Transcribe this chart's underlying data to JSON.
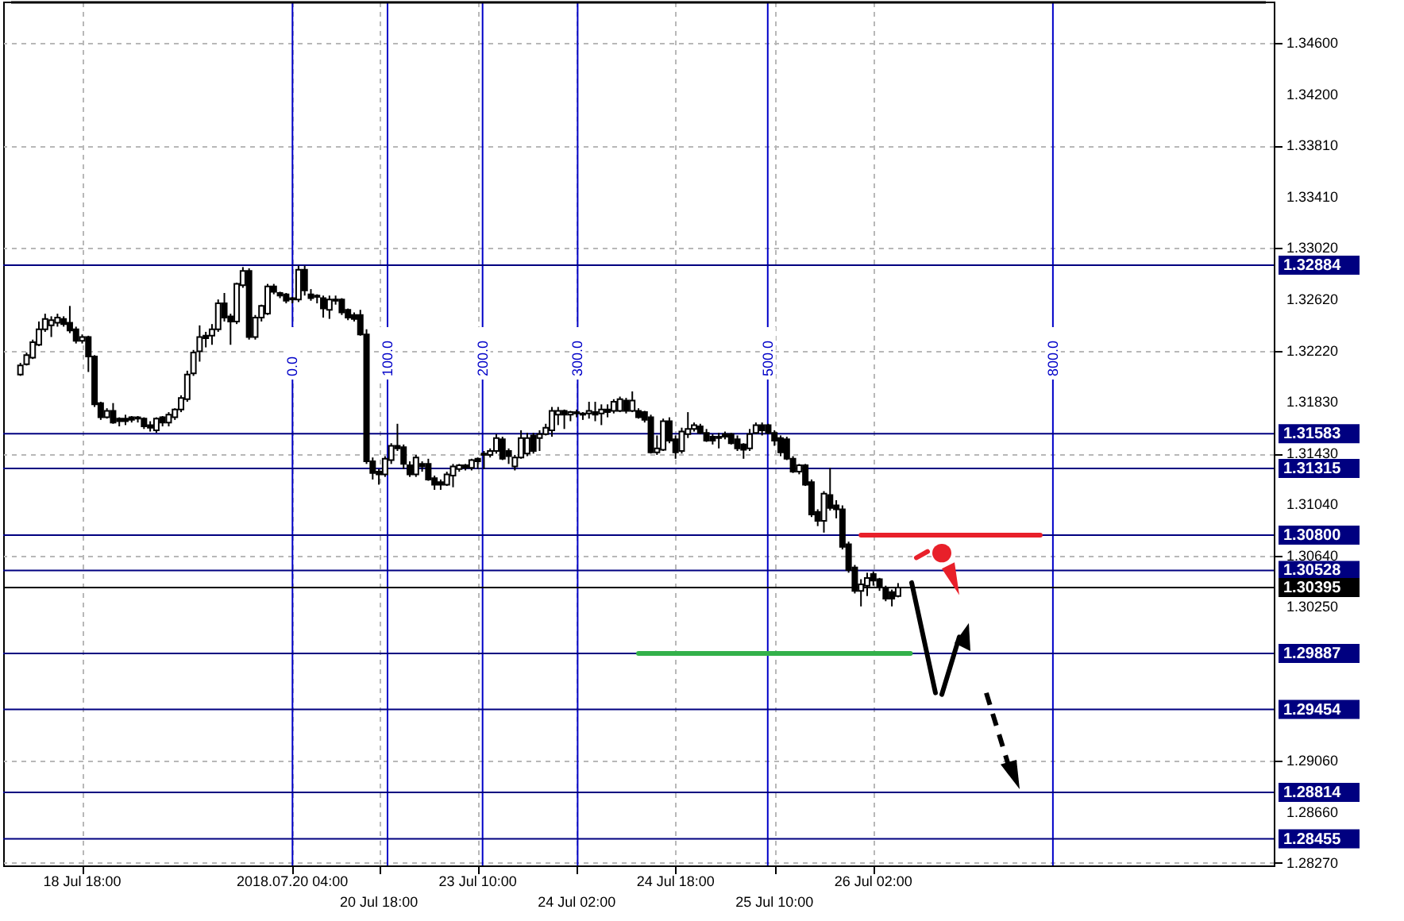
{
  "chart_data": {
    "type": "candlestick",
    "categories": [
      null,
      null,
      null,
      null,
      null,
      null,
      null,
      null,
      null,
      null,
      null,
      "18 Jul 18:00",
      null,
      null,
      null,
      null,
      null,
      null,
      null,
      null,
      null,
      null,
      null,
      null,
      null,
      null,
      null,
      null,
      null,
      null,
      null,
      null,
      null,
      null,
      null,
      null,
      null,
      null,
      null,
      null,
      null,
      null,
      null,
      null,
      null,
      "2018.07.20 04:00",
      null,
      null,
      null,
      null,
      null,
      null,
      null,
      null,
      null,
      null,
      null,
      null,
      null,
      "20 Jul 18:00",
      null,
      null,
      null,
      null,
      null,
      null,
      null,
      null,
      null,
      null,
      null,
      null,
      null,
      null,
      null,
      "23 Jul 10:00",
      null,
      null,
      null,
      null,
      null,
      null,
      null,
      null,
      null,
      null,
      null,
      null,
      null,
      null,
      null,
      "24 Jul 02:00",
      null,
      null,
      null,
      null,
      null,
      null,
      null,
      null,
      null,
      null,
      null,
      null,
      null,
      null,
      null,
      "24 Jul 18:00",
      null,
      null,
      null,
      null,
      null,
      null,
      null,
      null,
      null,
      null,
      null,
      null,
      null,
      null,
      null,
      "25 Jul 10:00",
      null,
      null,
      null,
      null,
      null,
      null,
      null,
      null,
      null,
      null,
      null,
      null,
      null,
      null,
      null,
      "26 Jul 02:00",
      null,
      null,
      null,
      null,
      null,
      null,
      null,
      null,
      null,
      null,
      null,
      null,
      null,
      null,
      null,
      null,
      null,
      null,
      null,
      null,
      null,
      null,
      null,
      null,
      null,
      null,
      null,
      null,
      null,
      null,
      null,
      null,
      null,
      null,
      null,
      null,
      null,
      null,
      null,
      null,
      null,
      null,
      null,
      null,
      null,
      null,
      null,
      null,
      null,
      null,
      null,
      null,
      null,
      null,
      null,
      null,
      null,
      null,
      null,
      null,
      null,
      null,
      null
    ],
    "ohlc": [
      null,
      [
        1.3204,
        1.3213,
        1.3203,
        1.3211
      ],
      [
        1.3212,
        1.3221,
        1.3211,
        1.3219
      ],
      [
        1.3217,
        1.3231,
        1.3216,
        1.3229
      ],
      [
        1.3227,
        1.3245,
        1.3226,
        1.3239
      ],
      [
        1.3239,
        1.3251,
        1.3237,
        1.3247
      ],
      [
        1.3242,
        1.3249,
        1.3233,
        1.3246
      ],
      [
        1.3244,
        1.3251,
        1.3241,
        1.3248
      ],
      [
        1.3247,
        1.3249,
        1.3241,
        1.3243
      ],
      [
        1.3244,
        1.3257,
        1.3236,
        1.3238
      ],
      [
        1.3239,
        1.3241,
        1.3228,
        1.323
      ],
      [
        1.323,
        1.3235,
        1.3228,
        1.3233
      ],
      [
        1.3233,
        1.3234,
        1.3206,
        1.3218
      ],
      [
        1.3218,
        1.3219,
        1.3179,
        1.3181
      ],
      [
        1.3182,
        1.3183,
        1.3169,
        1.3171
      ],
      [
        1.3171,
        1.3178,
        1.317,
        1.3176
      ],
      [
        1.3176,
        1.3182,
        1.3166,
        1.3167
      ],
      [
        1.317,
        1.3171,
        1.3164,
        1.3168
      ],
      [
        1.317,
        1.3173,
        1.3165,
        1.3168
      ],
      [
        1.3171,
        1.3172,
        1.3167,
        1.3169
      ],
      [
        1.3171,
        1.3172,
        1.3167,
        1.317
      ],
      [
        1.317,
        1.3171,
        1.3162,
        1.3164
      ],
      [
        1.3165,
        1.3168,
        1.316,
        1.3163
      ],
      [
        1.3161,
        1.3171,
        1.3159,
        1.317
      ],
      [
        1.3171,
        1.3172,
        1.3164,
        1.3167
      ],
      [
        1.3167,
        1.3175,
        1.3164,
        1.3173
      ],
      [
        1.3171,
        1.3178,
        1.3169,
        1.3177
      ],
      [
        1.3177,
        1.3188,
        1.3175,
        1.3186
      ],
      [
        1.3185,
        1.3207,
        1.3183,
        1.3204
      ],
      [
        1.3205,
        1.3223,
        1.3203,
        1.3221
      ],
      [
        1.3222,
        1.3242,
        1.3214,
        1.3233
      ],
      [
        1.3234,
        1.3237,
        1.3225,
        1.3232
      ],
      [
        1.3234,
        1.3243,
        1.3227,
        1.3239
      ],
      [
        1.3239,
        1.3262,
        1.3237,
        1.3259
      ],
      [
        1.3259,
        1.3267,
        1.3245,
        1.3248
      ],
      [
        1.3249,
        1.3251,
        1.3227,
        1.3245
      ],
      [
        1.3245,
        1.3275,
        1.3243,
        1.3274
      ],
      [
        1.3273,
        1.3287,
        1.3271,
        1.3284
      ],
      [
        1.3284,
        1.3286,
        1.3231,
        1.3233
      ],
      [
        1.3233,
        1.325,
        1.3231,
        1.3248
      ],
      [
        1.3248,
        1.3258,
        1.3245,
        1.3257
      ],
      [
        1.3251,
        1.3274,
        1.325,
        1.3272
      ],
      [
        1.3272,
        1.3274,
        1.3266,
        1.3268
      ],
      [
        1.3267,
        1.3268,
        1.3263,
        1.3265
      ],
      [
        1.3266,
        1.3267,
        1.3259,
        1.3261
      ],
      [
        1.3263,
        1.3264,
        1.3259,
        1.3262
      ],
      [
        1.3262,
        1.3288,
        1.326,
        1.3285
      ],
      [
        1.3285,
        1.3288,
        1.3265,
        1.3269
      ],
      [
        1.3266,
        1.327,
        1.3261,
        1.3263
      ],
      [
        1.3265,
        1.3266,
        1.3259,
        1.3264
      ],
      [
        1.3263,
        1.3265,
        1.3248,
        1.3255
      ],
      [
        1.3254,
        1.3265,
        1.3247,
        1.3262
      ],
      [
        1.3262,
        1.3265,
        1.3258,
        1.3261
      ],
      [
        1.3262,
        1.3263,
        1.325,
        1.3252
      ],
      [
        1.3254,
        1.3255,
        1.3246,
        1.3248
      ],
      [
        1.325,
        1.3252,
        1.3245,
        1.3247
      ],
      [
        1.325,
        1.3254,
        1.3234,
        1.3235
      ],
      [
        1.3235,
        1.3239,
        1.3135,
        1.3137
      ],
      [
        1.3137,
        1.314,
        1.3123,
        1.3128
      ],
      [
        1.3129,
        1.3131,
        1.3119,
        1.3127
      ],
      [
        1.3127,
        1.3141,
        1.3125,
        1.3139
      ],
      [
        1.3138,
        1.3151,
        1.3135,
        1.3149
      ],
      [
        1.3149,
        1.3166,
        1.3145,
        1.3147
      ],
      [
        1.3148,
        1.315,
        1.3131,
        1.3135
      ],
      [
        1.3134,
        1.3137,
        1.3125,
        1.3127
      ],
      [
        1.3127,
        1.3142,
        1.3125,
        1.314
      ],
      [
        1.3135,
        1.3137,
        1.3129,
        1.3133
      ],
      [
        1.3135,
        1.3139,
        1.3122,
        1.3123
      ],
      [
        1.3124,
        1.3126,
        1.3115,
        1.3119
      ],
      [
        1.3121,
        1.3123,
        1.3115,
        1.3119
      ],
      [
        1.3119,
        1.3129,
        1.3118,
        1.3127
      ],
      [
        1.3126,
        1.3135,
        1.3117,
        1.3133
      ],
      [
        1.3131,
        1.3135,
        1.3129,
        1.3134
      ],
      [
        1.3134,
        1.3135,
        1.313,
        1.3132
      ],
      [
        1.3132,
        1.3139,
        1.313,
        1.3138
      ],
      [
        1.3139,
        1.314,
        1.3131,
        1.3137
      ],
      [
        1.3143,
        1.3145,
        1.3131,
        1.3142
      ],
      [
        1.3142,
        1.3147,
        1.314,
        1.3145
      ],
      [
        1.3145,
        1.3158,
        1.3143,
        1.3155
      ],
      [
        1.3154,
        1.3156,
        1.3138,
        1.3139
      ],
      [
        1.3145,
        1.3147,
        1.3135,
        1.3141
      ],
      [
        1.3133,
        1.3142,
        1.313,
        1.314
      ],
      [
        1.314,
        1.3161,
        1.3139,
        1.3155
      ],
      [
        1.3143,
        1.3159,
        1.3141,
        1.3155
      ],
      [
        1.3157,
        1.3159,
        1.3143,
        1.3145
      ],
      [
        1.3155,
        1.3161,
        1.3145,
        1.3158
      ],
      [
        1.3158,
        1.3166,
        1.3157,
        1.3163
      ],
      [
        1.3161,
        1.3179,
        1.3156,
        1.3176
      ],
      [
        1.3173,
        1.3179,
        1.3165,
        1.3176
      ],
      [
        1.3176,
        1.3177,
        1.3162,
        1.3173
      ],
      [
        1.3173,
        1.3176,
        1.3168,
        1.3175
      ],
      [
        1.3175,
        1.3177,
        1.3171,
        1.3174
      ],
      [
        1.3174,
        1.3175,
        1.3169,
        1.3173
      ],
      [
        1.3174,
        1.3183,
        1.317,
        1.3176
      ],
      [
        1.3175,
        1.3183,
        1.3168,
        1.3173
      ],
      [
        1.3174,
        1.3181,
        1.3165,
        1.3177
      ],
      [
        1.3177,
        1.3181,
        1.3171,
        1.3175
      ],
      [
        1.3176,
        1.3185,
        1.3174,
        1.3183
      ],
      [
        1.3176,
        1.3187,
        1.3175,
        1.3185
      ],
      [
        1.3184,
        1.3186,
        1.3174,
        1.3176
      ],
      [
        1.3176,
        1.3191,
        1.3175,
        1.3184
      ],
      [
        1.3176,
        1.3178,
        1.317,
        1.3171
      ],
      [
        1.3175,
        1.3176,
        1.3167,
        1.3169
      ],
      [
        1.3171,
        1.3173,
        1.3143,
        1.3144
      ],
      [
        1.3144,
        1.3157,
        1.3142,
        1.3147
      ],
      [
        1.3146,
        1.317,
        1.3145,
        1.3168
      ],
      [
        1.3168,
        1.3171,
        1.3151,
        1.3153
      ],
      [
        1.3154,
        1.3157,
        1.3139,
        1.3144
      ],
      [
        1.3145,
        1.3163,
        1.3143,
        1.316
      ],
      [
        1.3158,
        1.3175,
        1.3155,
        1.3162
      ],
      [
        1.3162,
        1.3167,
        1.316,
        1.3165
      ],
      [
        1.3164,
        1.3166,
        1.3158,
        1.3159
      ],
      [
        1.3159,
        1.3162,
        1.3152,
        1.3153
      ],
      [
        1.3156,
        1.3158,
        1.315,
        1.3153
      ],
      [
        1.3156,
        1.3159,
        1.3147,
        1.3155
      ],
      [
        1.3158,
        1.316,
        1.3154,
        1.3156
      ],
      [
        1.3158,
        1.3159,
        1.315,
        1.3151
      ],
      [
        1.3154,
        1.3157,
        1.3145,
        1.3147
      ],
      [
        1.315,
        1.3151,
        1.3139,
        1.3146
      ],
      [
        1.3147,
        1.3162,
        1.3145,
        1.3158
      ],
      [
        1.3159,
        1.3167,
        1.3158,
        1.3165
      ],
      [
        1.3165,
        1.3167,
        1.3157,
        1.3161
      ],
      [
        1.3165,
        1.3166,
        1.3158,
        1.3159
      ],
      [
        1.3159,
        1.3161,
        1.3149,
        1.3153
      ],
      [
        1.3155,
        1.3157,
        1.3141,
        1.3144
      ],
      [
        1.3154,
        1.3156,
        1.3138,
        1.3139
      ],
      [
        1.3139,
        1.3141,
        1.3128,
        1.3129
      ],
      [
        1.3129,
        1.3135,
        1.3127,
        1.3134
      ],
      [
        1.3134,
        1.3135,
        1.3118,
        1.3119
      ],
      [
        1.3121,
        1.3123,
        1.3094,
        1.3096
      ],
      [
        1.3098,
        1.31,
        1.3087,
        1.3091
      ],
      [
        1.3091,
        1.3114,
        1.3082,
        1.3112
      ],
      [
        1.3111,
        1.3132,
        1.3099,
        1.3101
      ],
      [
        1.3103,
        1.3107,
        1.3093,
        1.31
      ],
      [
        1.31,
        1.3103,
        1.3069,
        1.3071
      ],
      [
        1.3073,
        1.3075,
        1.3051,
        1.3053
      ],
      [
        1.3055,
        1.3057,
        1.3035,
        1.3037
      ],
      [
        1.3037,
        1.3046,
        1.3025,
        1.3042
      ],
      [
        1.3041,
        1.3051,
        1.3033,
        1.3047
      ],
      [
        1.305,
        1.3052,
        1.3041,
        1.3045
      ],
      [
        1.3046,
        1.3047,
        1.3037,
        1.304
      ],
      [
        1.3039,
        1.3041,
        1.3029,
        1.3031
      ],
      [
        1.3036,
        1.3038,
        1.3025,
        1.3031
      ],
      [
        1.3033,
        1.3043,
        1.3032,
        1.30395
      ],
      null,
      null,
      null,
      null,
      null,
      null,
      null,
      null,
      null,
      null,
      null,
      null,
      null,
      null,
      null,
      null,
      null,
      null,
      null,
      null,
      null,
      null,
      null,
      null,
      null,
      null,
      null,
      null,
      null,
      null,
      null,
      null,
      null,
      null,
      null,
      null,
      null,
      null,
      null,
      null,
      null,
      null,
      null,
      null,
      null,
      null,
      null,
      null,
      null,
      null,
      null,
      null,
      null,
      null,
      null,
      null,
      null,
      null,
      null
    ],
    "series": [
      {
        "type": "line",
        "color": "#e8202a",
        "values": [
          null,
          null,
          null,
          null,
          null,
          null,
          null,
          null,
          null,
          null,
          null,
          null,
          null,
          null,
          null,
          null,
          null,
          null,
          null,
          null,
          null,
          null,
          null,
          null,
          null,
          null,
          null,
          null,
          null,
          null,
          null,
          null,
          null,
          null,
          null,
          null,
          null,
          null,
          null,
          null,
          null,
          null,
          null,
          null,
          null,
          null,
          null,
          null,
          null,
          null,
          null,
          null,
          null,
          null,
          null,
          null,
          null,
          null,
          null,
          null,
          null,
          null,
          null,
          null,
          null,
          null,
          null,
          null,
          null,
          null,
          null,
          null,
          null,
          null,
          null,
          null,
          null,
          null,
          null,
          null,
          null,
          null,
          null,
          null,
          null,
          null,
          null,
          null,
          null,
          null,
          null,
          null,
          null,
          null,
          null,
          null,
          null,
          null,
          null,
          null,
          null,
          null,
          null,
          null,
          null,
          null,
          null,
          null,
          null,
          null,
          null,
          null,
          null,
          null,
          null,
          null,
          null,
          null,
          null,
          null,
          null,
          null,
          null,
          null,
          null,
          null,
          null,
          null,
          null,
          null,
          null,
          null,
          null,
          null,
          null,
          null,
          null,
          1.308,
          1.308,
          1.308,
          1.308,
          1.308,
          1.308,
          1.308,
          1.308,
          1.308,
          1.308,
          1.308,
          1.308,
          1.308,
          1.308,
          1.308,
          1.308,
          1.308,
          1.308,
          1.308,
          1.308,
          1.308,
          1.308,
          1.308,
          1.308,
          1.308,
          1.308,
          1.308,
          1.308,
          1.308,
          1.308,
          null,
          null,
          null,
          null,
          null,
          null,
          null,
          null,
          null,
          null,
          null,
          null,
          null,
          null,
          null,
          null,
          null,
          null,
          null,
          null,
          null,
          null,
          null,
          null,
          null,
          null,
          null,
          null,
          null,
          null,
          null,
          null,
          null,
          null,
          null,
          null
        ]
      },
      {
        "type": "line",
        "color": "#33b14a",
        "values": [
          null,
          null,
          null,
          null,
          null,
          null,
          null,
          null,
          null,
          null,
          null,
          null,
          null,
          null,
          null,
          null,
          null,
          null,
          null,
          null,
          null,
          null,
          null,
          null,
          null,
          null,
          null,
          null,
          null,
          null,
          null,
          null,
          null,
          null,
          null,
          null,
          null,
          null,
          null,
          null,
          null,
          null,
          null,
          null,
          null,
          null,
          null,
          null,
          null,
          null,
          null,
          null,
          null,
          null,
          null,
          null,
          null,
          null,
          null,
          null,
          null,
          null,
          null,
          null,
          null,
          null,
          null,
          null,
          null,
          null,
          null,
          null,
          null,
          null,
          null,
          null,
          null,
          null,
          null,
          null,
          null,
          null,
          null,
          null,
          null,
          null,
          null,
          null,
          null,
          null,
          null,
          null,
          null,
          null,
          null,
          null,
          null,
          null,
          null,
          null,
          null,
          1.29887,
          1.29887,
          1.29887,
          1.29887,
          1.29887,
          1.29887,
          1.29887,
          1.29887,
          1.29887,
          1.29887,
          1.29887,
          1.29887,
          1.29887,
          1.29887,
          1.29887,
          1.29887,
          1.29887,
          1.29887,
          1.29887,
          1.29887,
          1.29887,
          1.29887,
          1.29887,
          1.29887,
          1.29887,
          1.29887,
          1.29887,
          1.29887,
          1.29887,
          1.29887,
          1.29887,
          1.29887,
          1.29887,
          1.29887,
          1.29887,
          1.29887,
          1.29887,
          1.29887,
          1.29887,
          1.29887,
          1.29887,
          1.29887,
          1.29887,
          1.29887,
          1.29887,
          null,
          null,
          null,
          null,
          null,
          null,
          null,
          null,
          null,
          null,
          null,
          null,
          null,
          null,
          null,
          null,
          null,
          null,
          null,
          null,
          null,
          null,
          null,
          null,
          null,
          null,
          null,
          null,
          null,
          null,
          null,
          null,
          null,
          null,
          null,
          null,
          null,
          null,
          null,
          null,
          null,
          null,
          null,
          null,
          null,
          null,
          null,
          null,
          null,
          null,
          null,
          null,
          null,
          null,
          null,
          null,
          null
        ]
      }
    ],
    "ylim": [
      1.2825,
      1.3492
    ],
    "yticks": [
      {
        "value": 1.346,
        "label": "1.34600"
      },
      {
        "value": 1.342,
        "label": "1.34200"
      },
      {
        "value": 1.3381,
        "label": "1.33810"
      },
      {
        "value": 1.3341,
        "label": "1.33410"
      },
      {
        "value": 1.3302,
        "label": "1.33020"
      },
      {
        "value": 1.3262,
        "label": "1.32620"
      },
      {
        "value": 1.3222,
        "label": "1.32220"
      },
      {
        "value": 1.3183,
        "label": "1.31830"
      },
      {
        "value": 1.3143,
        "label": "1.31430"
      },
      {
        "value": 1.3104,
        "label": "1.31040"
      },
      {
        "value": 1.3064,
        "label": "1.30640"
      },
      {
        "value": 1.3025,
        "label": "1.30250"
      },
      {
        "value": 1.2906,
        "label": "1.29060"
      },
      {
        "value": 1.2866,
        "label": "1.28660"
      },
      {
        "value": 1.2827,
        "label": "1.28270"
      }
    ],
    "x2lim": [
      -296,
      1024
    ],
    "x2ticks": [
      {
        "value": 0,
        "label": "0.0"
      },
      {
        "value": 100,
        "label": "100.0"
      },
      {
        "value": 200,
        "label": "200.0"
      },
      {
        "value": 300,
        "label": "300.0"
      },
      {
        "value": 500,
        "label": "500.0"
      },
      {
        "value": 800,
        "label": "800.0"
      }
    ],
    "grid": true,
    "ref_lines": [
      {
        "axis": "y",
        "value": 1.32884,
        "label": "1.32884",
        "color": "#000080"
      },
      {
        "axis": "y",
        "value": 1.31583,
        "label": "1.31583",
        "color": "#000080"
      },
      {
        "axis": "y",
        "value": 1.31315,
        "label": "1.31315",
        "color": "#000080"
      },
      {
        "axis": "y",
        "value": 1.308,
        "label": "1.30800",
        "color": "#000080"
      },
      {
        "axis": "y",
        "value": 1.30528,
        "label": "1.30528",
        "color": "#000080"
      },
      {
        "axis": "y",
        "value": 1.30395,
        "label": "1.30395",
        "color": "#000000"
      },
      {
        "axis": "y",
        "value": 1.29887,
        "label": "1.29887",
        "color": "#000080"
      },
      {
        "axis": "y",
        "value": 1.29454,
        "label": "1.29454",
        "color": "#000080"
      },
      {
        "axis": "y",
        "value": 1.28814,
        "label": "1.28814",
        "color": "#000080"
      },
      {
        "axis": "y",
        "value": 1.28455,
        "label": "1.28455",
        "color": "#000080"
      }
    ]
  }
}
